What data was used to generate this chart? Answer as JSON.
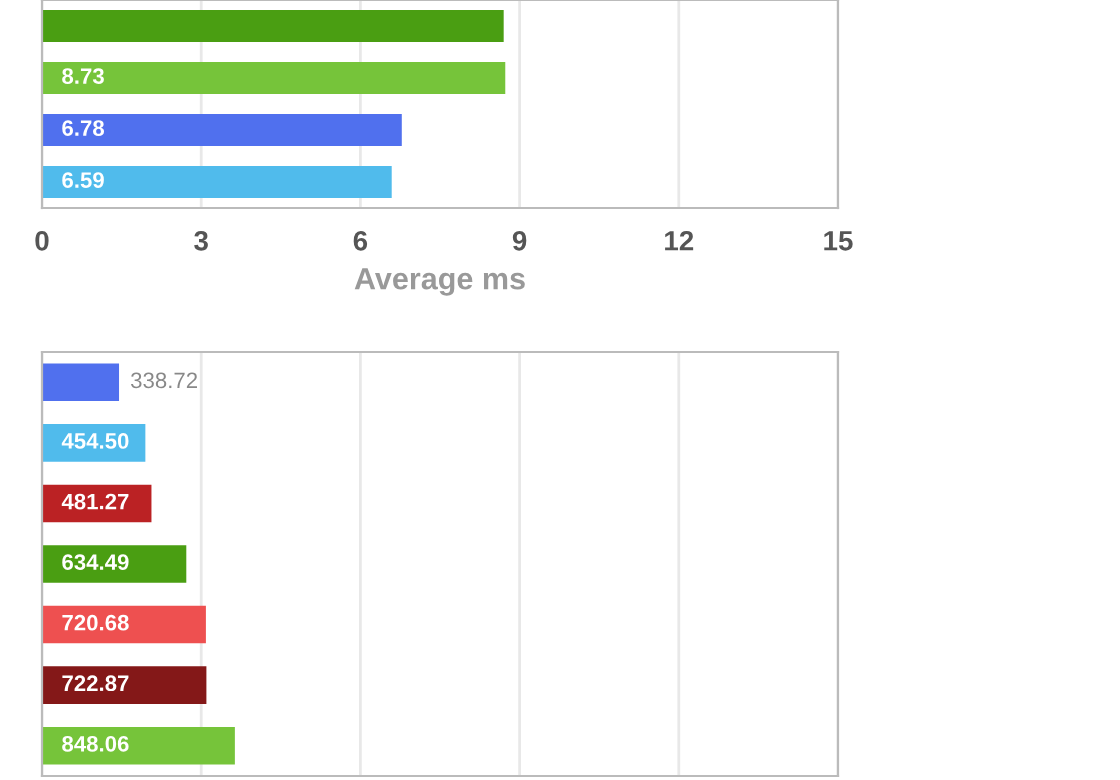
{
  "chart_data": [
    {
      "type": "bar",
      "orientation": "horizontal",
      "categories": [
        null,
        null,
        null,
        null
      ],
      "values": [
        8.7,
        8.73,
        6.78,
        6.59
      ],
      "colors": [
        "#4a9e12",
        "#76c43a",
        "#5070ee",
        "#50bbec"
      ],
      "value_labels": [
        null,
        "8.73",
        "6.78",
        "6.59"
      ],
      "xlim": [
        0,
        15
      ],
      "xticks": [
        0,
        3,
        6,
        9,
        12,
        15
      ],
      "xlabel": "Average ms",
      "grid": "x"
    },
    {
      "type": "bar",
      "orientation": "horizontal",
      "categories": [
        null,
        null,
        null,
        null,
        null,
        null,
        null
      ],
      "values": [
        338.72,
        454.5,
        481.27,
        634.49,
        720.68,
        722.87,
        848.06
      ],
      "colors": [
        "#5070ee",
        "#50bbec",
        "#bb2224",
        "#4a9e12",
        "#ee5050",
        "#841818",
        "#76c43a"
      ],
      "value_labels": [
        "338.72",
        "454.50",
        "481.27",
        "634.49",
        "720.68",
        "722.87",
        "848.06"
      ],
      "xlim": [
        0,
        3500
      ],
      "xticks": [
        {
          "value": 0,
          "label": null
        },
        {
          "value": 700,
          "label": null
        },
        {
          "value": 1400,
          "label": null
        },
        {
          "value": 2100,
          "label": null
        },
        {
          "value": 2800,
          "label": null
        },
        {
          "value": 3500,
          "label": null
        }
      ],
      "grid": "x"
    }
  ]
}
